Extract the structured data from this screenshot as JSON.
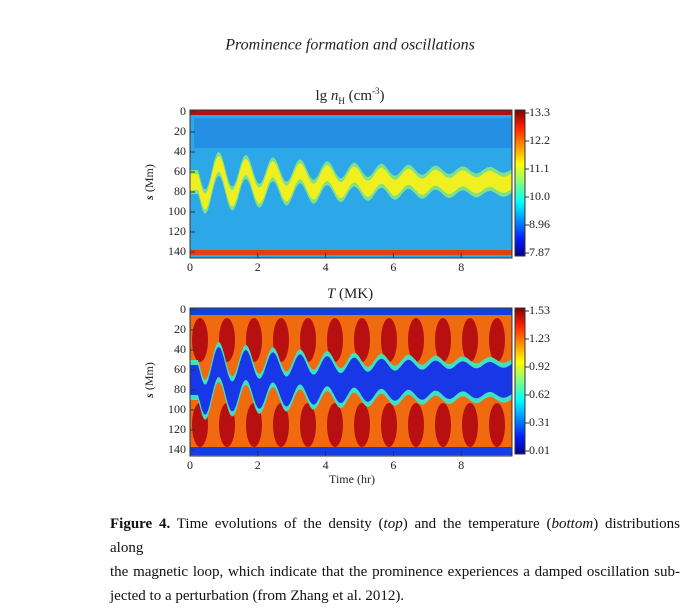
{
  "header": "Prominence formation and oscillations",
  "panels": [
    {
      "title": [
        "lg ",
        "n",
        "H",
        " (cm",
        "-3",
        ")"
      ],
      "y_label": [
        "s",
        " (Mm)"
      ],
      "yticks": [
        0,
        20,
        40,
        60,
        80,
        100,
        120,
        140
      ],
      "xticks": [
        0,
        2,
        4,
        6,
        8
      ],
      "colorbar_labels": [
        "13.3",
        "12.2",
        "11.1",
        "10.0",
        "8.96",
        "7.87"
      ]
    },
    {
      "title": [
        "T",
        " (MK)"
      ],
      "y_label": [
        "s",
        " (Mm)"
      ],
      "yticks": [
        0,
        20,
        40,
        60,
        80,
        100,
        120,
        140
      ],
      "xticks": [
        0,
        2,
        4,
        6,
        8
      ],
      "colorbar_labels": [
        "1.53",
        "1.23",
        "0.92",
        "0.62",
        "0.31",
        "0.01"
      ],
      "x_label": "Time (hr)"
    }
  ],
  "caption": {
    "label": "Figure 4.",
    "lines": [
      [
        " Time evolutions of the density (",
        "top",
        ") and the temperature (",
        "bottom",
        ") distributions along"
      ],
      [
        "the magnetic loop, which indicate that the prominence experiences a damped oscillation sub-"
      ],
      [
        "jected to a perturbation (from Zhang et al. 2012)."
      ]
    ]
  }
}
